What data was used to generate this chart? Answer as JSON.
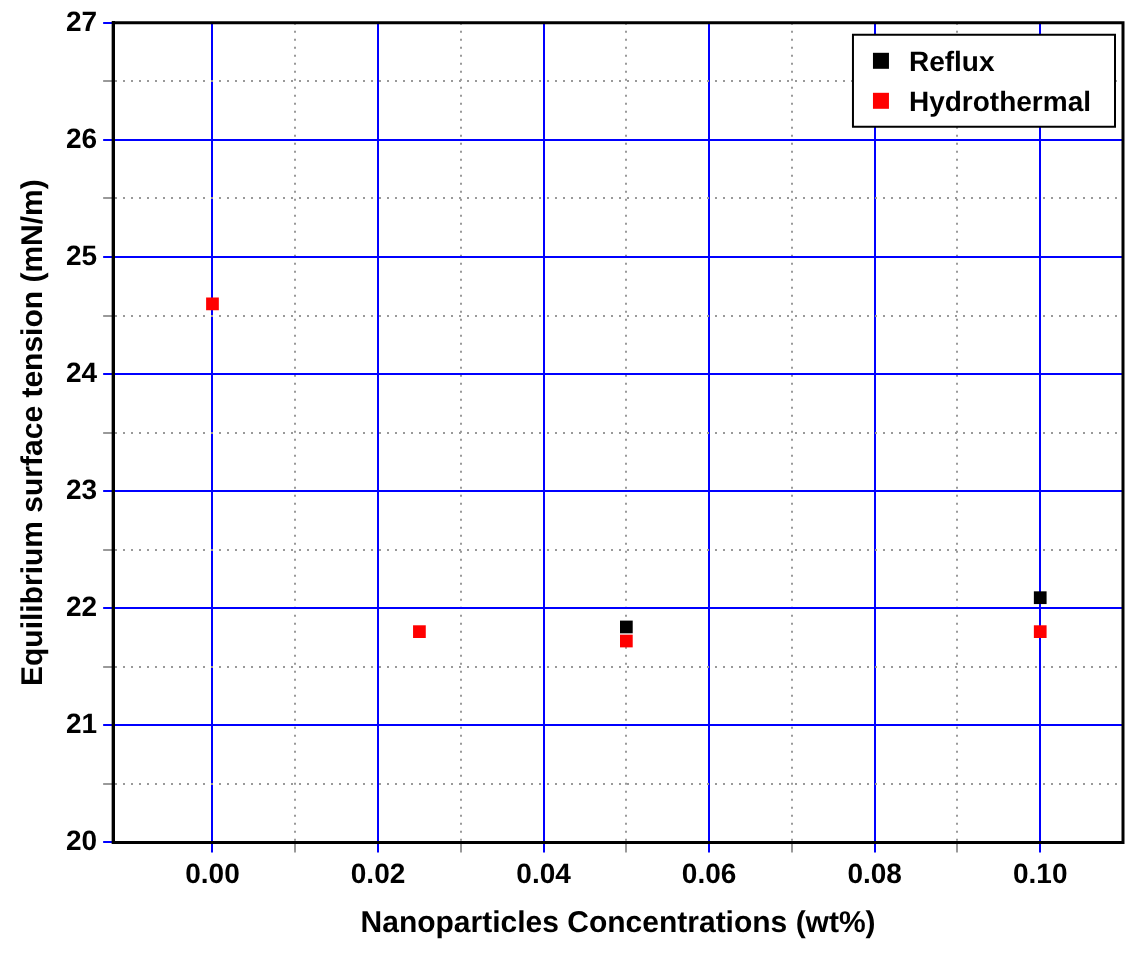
{
  "chart_data": {
    "type": "scatter",
    "xlabel": "Nanoparticles Concentrations (wt%)",
    "ylabel": "Equilibrium surface tension (mN/m)",
    "series": [
      {
        "name": "Reflux",
        "color": "#000000",
        "x": [
          0.05,
          0.1
        ],
        "values": [
          21.84,
          22.09
        ]
      },
      {
        "name": "Hydrothermal",
        "color": "#ff0000",
        "x": [
          0,
          0.025,
          0.05,
          0.1
        ],
        "values": [
          24.6,
          21.8,
          21.72,
          21.8
        ]
      }
    ],
    "xlim": [
      -0.012,
      0.11
    ],
    "xticks": [
      {
        "value": 0,
        "label": "0.00"
      },
      {
        "value": 0.01,
        "label": null
      },
      {
        "value": 0.02,
        "label": "0.02"
      },
      {
        "value": 0.03,
        "label": null
      },
      {
        "value": 0.04,
        "label": "0.04"
      },
      {
        "value": 0.05,
        "label": null
      },
      {
        "value": 0.06,
        "label": "0.06"
      },
      {
        "value": 0.07,
        "label": null
      },
      {
        "value": 0.08,
        "label": "0.08"
      },
      {
        "value": 0.09,
        "label": null
      },
      {
        "value": 0.1,
        "label": "0.10"
      }
    ],
    "ylim": [
      20,
      27
    ],
    "yticks": [
      20,
      {
        "value": 20.5,
        "label": null
      },
      21,
      {
        "value": 21.5,
        "label": null
      },
      22,
      {
        "value": 22.5,
        "label": null
      },
      23,
      {
        "value": 23.5,
        "label": null
      },
      24,
      {
        "value": 24.5,
        "label": null
      },
      25,
      {
        "value": 25.5,
        "label": null
      },
      26,
      {
        "value": 26.5,
        "label": null
      },
      27
    ],
    "grid": true,
    "legend": "top right",
    "marker": "square"
  }
}
